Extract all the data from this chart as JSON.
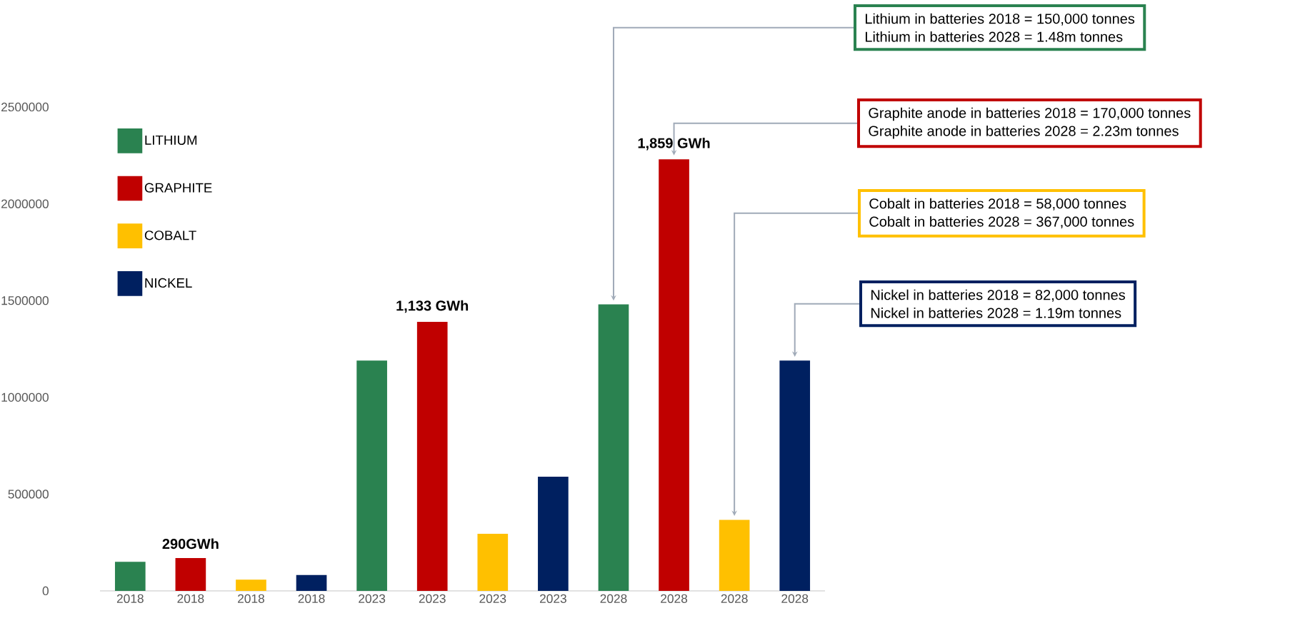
{
  "chart_data": {
    "type": "bar",
    "categories": [
      "2018",
      "2018",
      "2018",
      "2018",
      "2023",
      "2023",
      "2023",
      "2023",
      "2028",
      "2028",
      "2028",
      "2028"
    ],
    "series": [
      {
        "name": "LITHIUM",
        "color": "#2a8250",
        "values": [
          150000,
          null,
          null,
          null,
          1190000,
          null,
          null,
          null,
          1480000,
          null,
          null,
          null
        ]
      },
      {
        "name": "GRAPHITE",
        "color": "#c00000",
        "values": [
          null,
          170000,
          null,
          null,
          null,
          1390000,
          null,
          null,
          null,
          2230000,
          null,
          null
        ]
      },
      {
        "name": "COBALT",
        "color": "#ffc000",
        "values": [
          null,
          null,
          58000,
          null,
          null,
          null,
          295000,
          null,
          null,
          null,
          367000,
          null
        ]
      },
      {
        "name": "NICKEL",
        "color": "#002060",
        "values": [
          null,
          null,
          null,
          82000,
          null,
          null,
          null,
          590000,
          null,
          null,
          null,
          1190000
        ]
      }
    ],
    "ylim": [
      0,
      2500000
    ],
    "yticks": [
      0,
      500000,
      1000000,
      1500000,
      2000000,
      2500000
    ],
    "legend": "top left",
    "annotations": [
      "290GWh",
      "1,133 GWh",
      "1,859 GWh",
      "Lithium in batteries 2018 = 150,000 tonnes",
      "Lithium in batteries 2028 = 1.48m tonnes",
      "Graphite anode in batteries 2018 = 170,000 tonnes",
      "Graphite anode in batteries 2028 = 2.23m tonnes",
      "Cobalt in batteries 2018 = 58,000 tonnes",
      "Cobalt in batteries 2028 = 367,000 tonnes",
      "Nickel in batteries 2018 = 82,000 tonnes",
      "Nickel in batteries 2028 = 1.19m tonnes"
    ]
  }
}
